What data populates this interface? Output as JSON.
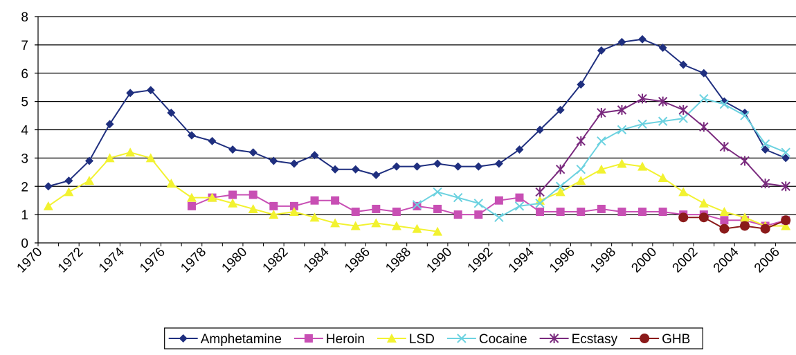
{
  "chart_data": {
    "type": "line",
    "categories": [
      "1970",
      null,
      "1972",
      null,
      "1974",
      null,
      "1976",
      null,
      "1978",
      null,
      "1980",
      null,
      "1982",
      null,
      "1984",
      null,
      "1986",
      null,
      "1988",
      null,
      "1990",
      null,
      "1992",
      null,
      "1994",
      null,
      "1996",
      null,
      "1998",
      null,
      "2000",
      null,
      "2002",
      null,
      "2004",
      null,
      "2006"
    ],
    "series": [
      {
        "name": "Amphetamine",
        "color": "#1f2f7f",
        "marker": "diamond",
        "values": [
          2.0,
          2.2,
          2.9,
          4.2,
          5.3,
          5.4,
          4.6,
          3.8,
          3.6,
          3.3,
          3.2,
          2.9,
          2.8,
          3.1,
          2.6,
          2.6,
          2.4,
          2.7,
          2.7,
          2.8,
          2.7,
          2.7,
          2.8,
          3.3,
          4.0,
          4.7,
          5.6,
          6.8,
          7.1,
          7.2,
          6.9,
          6.3,
          6.0,
          5.0,
          4.6,
          3.3,
          3.0
        ]
      },
      {
        "name": "Heroin",
        "color": "#c84fb4",
        "marker": "square",
        "values": [
          null,
          null,
          null,
          null,
          null,
          null,
          null,
          1.3,
          1.6,
          1.7,
          1.7,
          1.3,
          1.3,
          1.5,
          1.5,
          1.1,
          1.2,
          1.1,
          1.3,
          1.2,
          1.0,
          1.0,
          1.5,
          1.6,
          1.1,
          1.1,
          1.1,
          1.2,
          1.1,
          1.1,
          1.1,
          1.0,
          1.0,
          0.8,
          0.8,
          0.6,
          0.8
        ]
      },
      {
        "name": "LSD",
        "color": "#f2f230",
        "marker": "triangle",
        "values": [
          1.3,
          1.8,
          2.2,
          3.0,
          3.2,
          3.0,
          2.1,
          1.6,
          1.6,
          1.4,
          1.2,
          1.0,
          1.1,
          0.9,
          0.7,
          0.6,
          0.7,
          0.6,
          0.5,
          0.4,
          null,
          null,
          null,
          null,
          1.5,
          1.8,
          2.2,
          2.6,
          2.8,
          2.7,
          2.3,
          1.8,
          1.4,
          1.1,
          0.9,
          0.6,
          0.6
        ]
      },
      {
        "name": "Cocaine",
        "color": "#6cd2e0",
        "marker": "x",
        "values": [
          null,
          null,
          null,
          null,
          null,
          null,
          null,
          null,
          null,
          null,
          null,
          null,
          null,
          null,
          null,
          null,
          null,
          null,
          1.35,
          1.8,
          1.6,
          1.4,
          0.9,
          1.3,
          1.4,
          2.0,
          2.6,
          3.6,
          4.0,
          4.2,
          4.3,
          4.4,
          5.1,
          4.9,
          4.5,
          3.5,
          3.2
        ]
      },
      {
        "name": "Ecstasy",
        "color": "#7a2a7e",
        "marker": "star",
        "values": [
          null,
          null,
          null,
          null,
          null,
          null,
          null,
          null,
          null,
          null,
          null,
          null,
          null,
          null,
          null,
          null,
          null,
          null,
          null,
          null,
          null,
          null,
          null,
          null,
          1.8,
          2.6,
          3.6,
          4.6,
          4.7,
          5.1,
          5.0,
          4.7,
          4.1,
          3.4,
          2.9,
          2.1,
          2.0
        ]
      },
      {
        "name": "GHB",
        "color": "#8b1a1a",
        "marker": "circle",
        "values": [
          null,
          null,
          null,
          null,
          null,
          null,
          null,
          null,
          null,
          null,
          null,
          null,
          null,
          null,
          null,
          null,
          null,
          null,
          null,
          null,
          null,
          null,
          null,
          null,
          null,
          null,
          null,
          null,
          null,
          null,
          null,
          0.9,
          0.9,
          0.5,
          0.6,
          0.5,
          0.8
        ]
      }
    ],
    "ylim": [
      0,
      8
    ],
    "yticks": [
      0,
      1,
      2,
      3,
      4,
      5,
      6,
      7,
      8
    ],
    "grid": true,
    "legend": "bottom"
  }
}
